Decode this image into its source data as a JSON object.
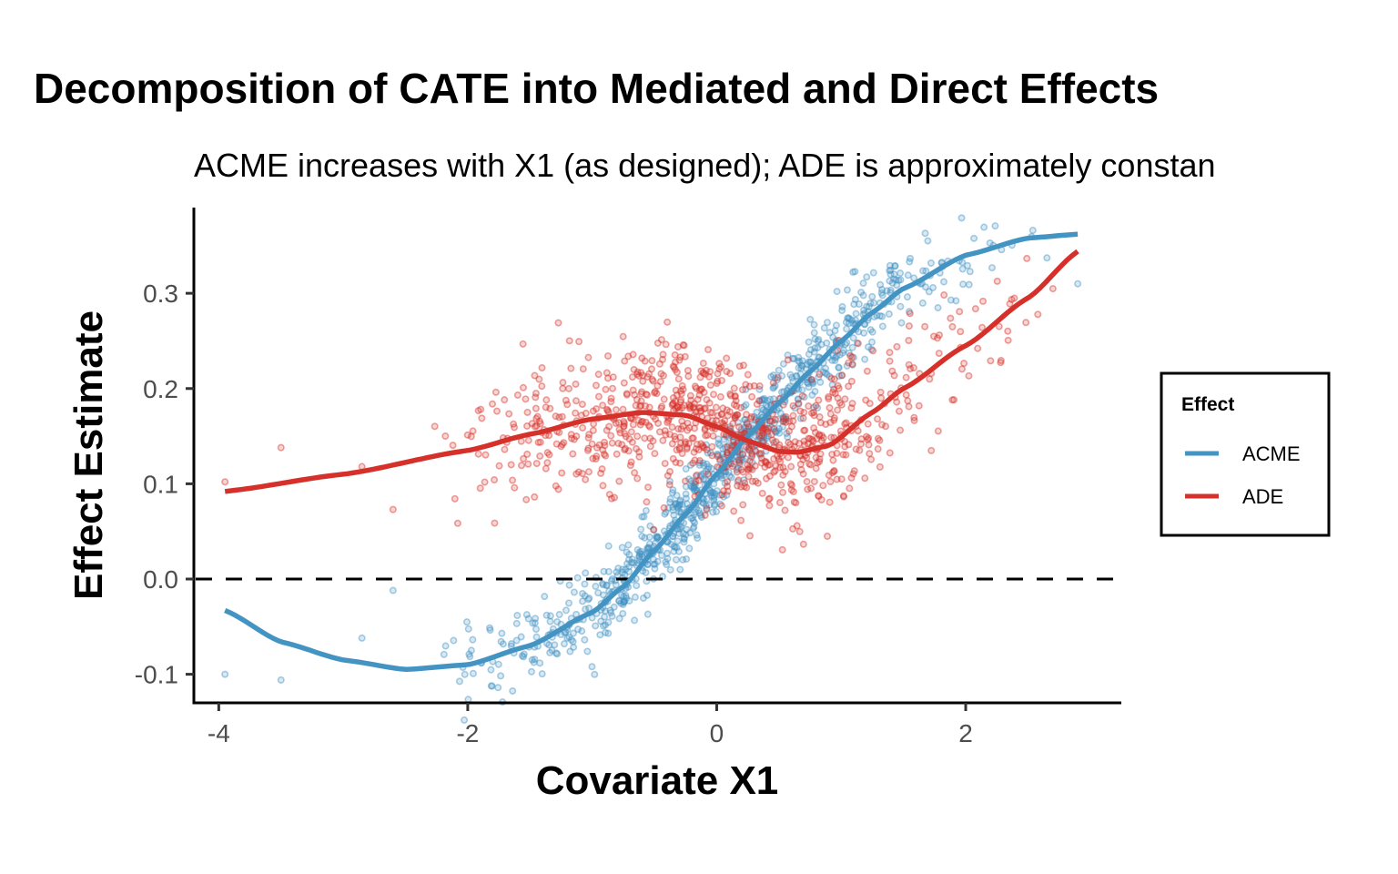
{
  "chart_data": {
    "type": "scatter",
    "title": "Decomposition of CATE into Mediated and Direct Effects",
    "subtitle": "ACME increases with X1 (as designed); ADE is approximately constan",
    "xlabel": "Covariate X1",
    "ylabel": "Effect Estimate",
    "xlim": [
      -4.2,
      3.25
    ],
    "ylim": [
      -0.13,
      0.39
    ],
    "x_ticks": [
      -4,
      -2,
      0,
      2
    ],
    "x_tick_labels": [
      "-4",
      "-2",
      "0",
      "2"
    ],
    "y_ticks": [
      -0.1,
      0.0,
      0.1,
      0.2,
      0.3
    ],
    "y_tick_labels": [
      "-0.1",
      "0.0",
      "0.1",
      "0.2",
      "0.3"
    ],
    "grid": false,
    "reference_line": {
      "y": 0.0,
      "style": "dashed",
      "color": "#000000"
    },
    "legend": {
      "title": "Effect",
      "placement": "right",
      "entries": [
        {
          "label": "ACME",
          "color": "#4393C3"
        },
        {
          "label": "ADE",
          "color": "#D6302A"
        }
      ]
    },
    "series": [
      {
        "name": "ACME",
        "color": "#4393C3",
        "smooth_curve": {
          "x": [
            -3.95,
            -3.5,
            -3.0,
            -2.5,
            -2.0,
            -1.5,
            -1.0,
            -0.75,
            -0.5,
            -0.25,
            0.0,
            0.25,
            0.5,
            0.75,
            1.0,
            1.25,
            1.5,
            2.0,
            2.5,
            2.9
          ],
          "y": [
            -0.033,
            -0.066,
            -0.085,
            -0.095,
            -0.09,
            -0.07,
            -0.035,
            -0.008,
            0.03,
            0.068,
            0.11,
            0.15,
            0.185,
            0.218,
            0.25,
            0.28,
            0.305,
            0.34,
            0.358,
            0.362
          ]
        },
        "points_summary": "~1000 semi-transparent points scattered around the curve, residual sd ~0.02",
        "outlier_points": [
          {
            "x": -3.95,
            "y": -0.1
          },
          {
            "x": -3.5,
            "y": -0.106
          },
          {
            "x": -2.85,
            "y": -0.062
          },
          {
            "x": -2.6,
            "y": -0.012
          },
          {
            "x": 2.9,
            "y": 0.31
          }
        ]
      },
      {
        "name": "ADE",
        "color": "#D6302A",
        "smooth_curve": {
          "x": [
            -3.95,
            -3.0,
            -2.0,
            -1.5,
            -1.0,
            -0.6,
            -0.25,
            0.0,
            0.25,
            0.5,
            0.65,
            0.9,
            1.25,
            1.5,
            2.0,
            2.5,
            2.9
          ],
          "y": [
            0.092,
            0.11,
            0.135,
            0.152,
            0.168,
            0.175,
            0.172,
            0.16,
            0.145,
            0.134,
            0.133,
            0.14,
            0.175,
            0.2,
            0.245,
            0.295,
            0.344
          ]
        },
        "points_summary": "~1000 semi-transparent points scattered around the curve, residual sd ~0.035",
        "outlier_points": [
          {
            "x": -3.95,
            "y": 0.102
          },
          {
            "x": -3.5,
            "y": 0.138
          },
          {
            "x": -2.85,
            "y": 0.118
          },
          {
            "x": -2.6,
            "y": 0.073
          }
        ]
      }
    ]
  }
}
